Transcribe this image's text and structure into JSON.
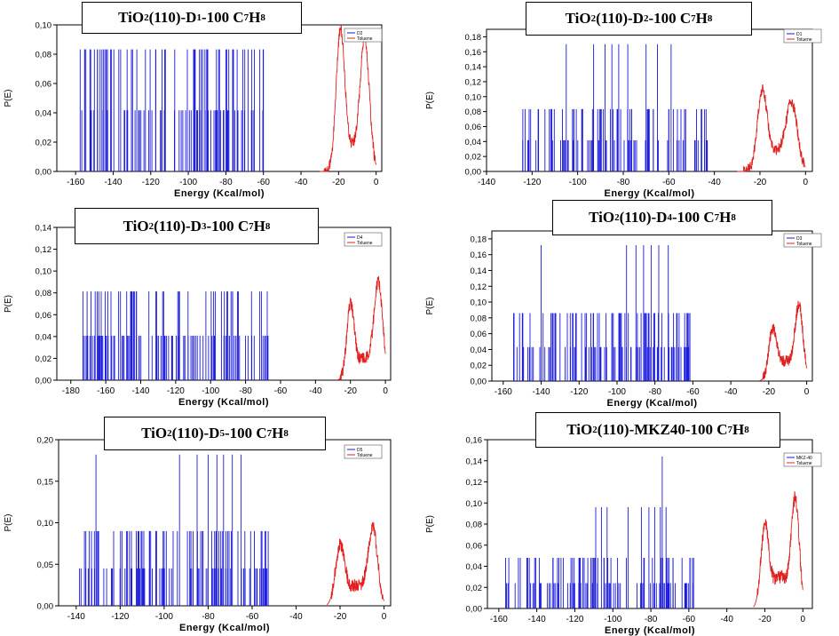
{
  "figure": {
    "colors": {
      "adsorbate": "#1a1adc",
      "toluene": "#e02020",
      "axis": "#000000"
    }
  },
  "chart_data": [
    {
      "type": "bar",
      "title": "TiO2 (110)-D1-100 C7H8",
      "title_parts": [
        "TiO",
        "2",
        " (110)-D",
        "1",
        "-100 C",
        "7",
        "H",
        "8"
      ],
      "xlabel": "Energy (Kcal/mol)",
      "ylabel": "P(E)",
      "xlim": [
        -170,
        3
      ],
      "ylim": [
        0,
        0.1
      ],
      "xticks": [
        -160,
        -140,
        -120,
        -100,
        -80,
        -60,
        -40,
        -20,
        0
      ],
      "xtick_labels": [
        "-160",
        "-140",
        "-120",
        "-100",
        "-80",
        "-60",
        "-40",
        "-20",
        "0"
      ],
      "yticks": [
        0,
        0.02,
        0.04,
        0.06,
        0.08,
        0.1
      ],
      "ytick_labels": [
        "0,00",
        "0,02",
        "0,04",
        "0,06",
        "0,08",
        "0,10"
      ],
      "legend": [
        "D2",
        "Toluene"
      ],
      "bars": {
        "range": [
          -158,
          -60
        ],
        "levels": [
          0.0417,
          0.0833
        ],
        "tall": [
          -150,
          -147,
          -145,
          -143,
          -141,
          -137,
          -114,
          -85,
          -80,
          -76,
          -71
        ],
        "count": 110
      },
      "toluene": {
        "peaks": [
          {
            "x": -19,
            "h": 0.092,
            "w": 3.2
          },
          {
            "x": -6,
            "h": 0.083,
            "w": 3.4
          }
        ],
        "base": 0.016,
        "base_center": -12,
        "base_w": 7,
        "range": [
          -30,
          0
        ]
      }
    },
    {
      "type": "bar",
      "title": "TiO2 (110)-D2-100 C7H8",
      "title_parts": [
        "TiO",
        "2",
        " (110)-D",
        "2",
        "-100 C",
        "7",
        "H",
        "8"
      ],
      "xlabel": "Energy (Kcal/mol)",
      "ylabel": "P(E)",
      "xlim": [
        -140,
        3
      ],
      "ylim": [
        0,
        0.19
      ],
      "xticks": [
        -140,
        -120,
        -100,
        -80,
        -60,
        -40,
        -20,
        0
      ],
      "xtick_labels": [
        "-140",
        "-120",
        "-100",
        "-80",
        "-60",
        "-40",
        "-20",
        "0"
      ],
      "yticks": [
        0,
        0.02,
        0.04,
        0.06,
        0.08,
        0.1,
        0.12,
        0.14,
        0.16,
        0.18
      ],
      "ytick_labels": [
        "0,00",
        "0,02",
        "0,04",
        "0,06",
        "0,08",
        "0,10",
        "0,12",
        "0,14",
        "0,16",
        "0,18"
      ],
      "legend": [
        "D1",
        "Toluene"
      ],
      "bars": {
        "range": [
          -125,
          -43
        ],
        "levels": [
          0.0417,
          0.0833
        ],
        "tall": [
          -105,
          -93,
          -88,
          -85,
          -82,
          -78,
          -70,
          -65,
          -59
        ],
        "tall_h": 0.17,
        "count": 110
      },
      "toluene": {
        "peaks": [
          {
            "x": -19,
            "h": 0.1,
            "w": 3
          },
          {
            "x": -6,
            "h": 0.08,
            "w": 3.5
          }
        ],
        "base": 0.025,
        "base_center": -12,
        "base_w": 7,
        "range": [
          -30,
          0
        ]
      }
    },
    {
      "type": "bar",
      "title": "TiO2 (110)-D3-100 C7H8",
      "title_parts": [
        "TiO",
        "2",
        " (110)-D",
        "3",
        "-100 C",
        "7",
        "H",
        "8"
      ],
      "xlabel": "Energy (Kcal/mol)",
      "ylabel": "P(E)",
      "xlim": [
        -188,
        3
      ],
      "ylim": [
        0,
        0.14
      ],
      "xticks": [
        -180,
        -160,
        -140,
        -120,
        -100,
        -80,
        -60,
        -40,
        -20,
        0
      ],
      "xtick_labels": [
        "-180",
        "-160",
        "-140",
        "-120",
        "-100",
        "-80",
        "-60",
        "-40",
        "-20",
        "0"
      ],
      "yticks": [
        0,
        0.02,
        0.04,
        0.06,
        0.08,
        0.1,
        0.12,
        0.14
      ],
      "ytick_labels": [
        "0,00",
        "0,02",
        "0,04",
        "0,06",
        "0,08",
        "0,10",
        "0,12",
        "0,14"
      ],
      "legend": [
        "D4",
        "Toluene"
      ],
      "bars": {
        "range": [
          -175,
          -67
        ],
        "levels": [
          0.0407,
          0.0407,
          0.0813
        ],
        "tall": [],
        "count": 130
      },
      "toluene": {
        "peaks": [
          {
            "x": -20,
            "h": 0.065,
            "w": 3
          },
          {
            "x": -4,
            "h": 0.085,
            "w": 3.5
          }
        ],
        "base": 0.02,
        "base_center": -12,
        "base_w": 7,
        "range": [
          -28,
          0
        ]
      }
    },
    {
      "type": "bar",
      "title": "TiO2 (110)-D4-100 C7H8",
      "title_parts": [
        "TiO",
        "2",
        " (110)-D",
        "4",
        "-100 C",
        "7",
        "H",
        "8"
      ],
      "xlabel": "Energy (Kcal/mol)",
      "ylabel": "P(E)",
      "xlim": [
        -166,
        3
      ],
      "ylim": [
        0,
        0.19
      ],
      "xticks": [
        -160,
        -140,
        -120,
        -100,
        -80,
        -60,
        -40,
        -20,
        0
      ],
      "xtick_labels": [
        "-160",
        "-140",
        "-120",
        "-100",
        "-80",
        "-60",
        "-40",
        "-20",
        "0"
      ],
      "yticks": [
        0,
        0.02,
        0.04,
        0.06,
        0.08,
        0.1,
        0.12,
        0.14,
        0.16,
        0.18
      ],
      "ytick_labels": [
        "0,00",
        "0,02",
        "0,04",
        "0,06",
        "0,08",
        "0,10",
        "0,12",
        "0,14",
        "0,16",
        "0,18"
      ],
      "legend": [
        "D3",
        "Toluene"
      ],
      "bars": {
        "range": [
          -155,
          -61
        ],
        "levels": [
          0.043,
          0.086
        ],
        "tall": [
          -140,
          -95,
          -90,
          -86,
          -82,
          -78,
          -73
        ],
        "tall_h": 0.172,
        "count": 120
      },
      "toluene": {
        "peaks": [
          {
            "x": -18,
            "h": 0.06,
            "w": 3
          },
          {
            "x": -4,
            "h": 0.09,
            "w": 3
          }
        ],
        "base": 0.025,
        "base_center": -11,
        "base_w": 6,
        "range": [
          -25,
          0
        ]
      }
    },
    {
      "type": "bar",
      "title": "TiO2 (110)-D5-100 C7H8",
      "title_parts": [
        "TiO",
        "2",
        " (110)-D",
        "5",
        "-100 C",
        "7",
        "H",
        "8"
      ],
      "xlabel": "Energy (Kcal/mol)",
      "ylabel": "P(E)",
      "xlim": [
        -148,
        3
      ],
      "ylim": [
        0,
        0.2
      ],
      "xticks": [
        -140,
        -120,
        -100,
        -80,
        -60,
        -40,
        -20,
        0
      ],
      "xtick_labels": [
        "-140",
        "-120",
        "-100",
        "-80",
        "-60",
        "-40",
        "-20",
        "0"
      ],
      "yticks": [
        0,
        0.05,
        0.1,
        0.15,
        0.2
      ],
      "ytick_labels": [
        "0,00",
        "0,05",
        "0,10",
        "0,15",
        "0,20"
      ],
      "legend": [
        "D5",
        "Toluene"
      ],
      "bars": {
        "range": [
          -140,
          -52
        ],
        "levels": [
          0.045,
          0.09
        ],
        "tall": [
          -131,
          -93,
          -85,
          -80,
          -76,
          -73,
          -69,
          -65
        ],
        "tall_h": 0.182,
        "count": 130
      },
      "toluene": {
        "peaks": [
          {
            "x": -20,
            "h": 0.07,
            "w": 3
          },
          {
            "x": -5,
            "h": 0.088,
            "w": 3
          }
        ],
        "base": 0.025,
        "base_center": -12,
        "base_w": 6,
        "range": [
          -26,
          0
        ]
      }
    },
    {
      "type": "bar",
      "title": "TiO2 (110)-MKZ40-100 C7H8",
      "title_parts": [
        "TiO",
        "2",
        " (110)-MKZ40-100 C",
        "",
        "",
        "7",
        "H",
        "8"
      ],
      "xlabel": "Energy (Kcal/mol)",
      "ylabel": "P(E)",
      "xlim": [
        -166,
        5
      ],
      "ylim": [
        0,
        0.16
      ],
      "xticks": [
        -160,
        -140,
        -120,
        -100,
        -80,
        -60,
        -40,
        -20,
        0
      ],
      "xtick_labels": [
        "-160",
        "-140",
        "-120",
        "-100",
        "-80",
        "-60",
        "-40",
        "-20",
        "0"
      ],
      "yticks": [
        0,
        0.02,
        0.04,
        0.06,
        0.08,
        0.1,
        0.12,
        0.14,
        0.16
      ],
      "ytick_labels": [
        "0,00",
        "0,02",
        "0,04",
        "0,06",
        "0,08",
        "0,10",
        "0,12",
        "0,14",
        "0,16"
      ],
      "legend": [
        "MKZ-40",
        "Toluene"
      ],
      "bars": {
        "range": [
          -158,
          -56
        ],
        "levels": [
          0.024,
          0.048
        ],
        "tall": [
          -109,
          -106,
          -103,
          -92,
          -85,
          -81,
          -78,
          -75,
          -72
        ],
        "tall_h": 0.096,
        "peak": {
          "x": -74,
          "h": 0.144
        },
        "count": 120
      },
      "toluene": {
        "peaks": [
          {
            "x": -20,
            "h": 0.075,
            "w": 3
          },
          {
            "x": -4,
            "h": 0.1,
            "w": 3
          }
        ],
        "base": 0.03,
        "base_center": -12,
        "base_w": 6,
        "range": [
          -26,
          0
        ]
      }
    }
  ]
}
